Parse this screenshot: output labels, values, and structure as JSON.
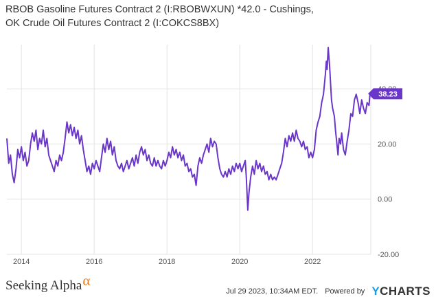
{
  "chart_data": {
    "type": "line",
    "title_line1": "RBOB Gasoline Futures Contract 2 (I:RBOBWXUN) *42.0 - Cushings,",
    "title_line2": "OK Crude Oil Futures Contract 2 (I:COKCS8BX)",
    "xlim": [
      2013.6,
      2023.6
    ],
    "ylim": [
      -20,
      56
    ],
    "y_ticks": [
      {
        "value": 40,
        "label": "40.00"
      },
      {
        "value": 20,
        "label": "20.00"
      },
      {
        "value": 0,
        "label": "0.00"
      },
      {
        "value": -20,
        "label": "-20.00"
      }
    ],
    "x_ticks": [
      {
        "value": 2014,
        "label": "2014"
      },
      {
        "value": 2016,
        "label": "2016"
      },
      {
        "value": 2018,
        "label": "2018"
      },
      {
        "value": 2020,
        "label": "2020"
      },
      {
        "value": 2022,
        "label": "2022"
      }
    ],
    "grid": true,
    "last_value_label": "38.23",
    "series": [
      {
        "color": "#6a35c9",
        "points": [
          [
            2013.6,
            22
          ],
          [
            2013.65,
            13
          ],
          [
            2013.7,
            16
          ],
          [
            2013.75,
            9
          ],
          [
            2013.8,
            6
          ],
          [
            2013.85,
            11
          ],
          [
            2013.9,
            18
          ],
          [
            2013.95,
            15
          ],
          [
            2014.0,
            19
          ],
          [
            2014.05,
            14
          ],
          [
            2014.1,
            17
          ],
          [
            2014.15,
            12
          ],
          [
            2014.2,
            14
          ],
          [
            2014.25,
            20
          ],
          [
            2014.3,
            24
          ],
          [
            2014.35,
            21
          ],
          [
            2014.4,
            25
          ],
          [
            2014.45,
            18
          ],
          [
            2014.5,
            22
          ],
          [
            2014.55,
            20
          ],
          [
            2014.6,
            25
          ],
          [
            2014.65,
            19
          ],
          [
            2014.7,
            22
          ],
          [
            2014.75,
            16
          ],
          [
            2014.8,
            14
          ],
          [
            2014.85,
            12
          ],
          [
            2014.9,
            10
          ],
          [
            2014.95,
            14
          ],
          [
            2015.0,
            12
          ],
          [
            2015.05,
            16
          ],
          [
            2015.1,
            14
          ],
          [
            2015.15,
            17
          ],
          [
            2015.2,
            22
          ],
          [
            2015.25,
            28
          ],
          [
            2015.3,
            24
          ],
          [
            2015.35,
            27
          ],
          [
            2015.4,
            23
          ],
          [
            2015.45,
            26
          ],
          [
            2015.5,
            22
          ],
          [
            2015.55,
            25
          ],
          [
            2015.6,
            20
          ],
          [
            2015.65,
            23
          ],
          [
            2015.7,
            18
          ],
          [
            2015.75,
            14
          ],
          [
            2015.8,
            10
          ],
          [
            2015.85,
            12
          ],
          [
            2015.9,
            9
          ],
          [
            2015.95,
            13
          ],
          [
            2016.0,
            11
          ],
          [
            2016.05,
            14
          ],
          [
            2016.1,
            12
          ],
          [
            2016.15,
            10
          ],
          [
            2016.2,
            15
          ],
          [
            2016.25,
            20
          ],
          [
            2016.3,
            17
          ],
          [
            2016.35,
            22
          ],
          [
            2016.4,
            18
          ],
          [
            2016.45,
            21
          ],
          [
            2016.5,
            16
          ],
          [
            2016.55,
            19
          ],
          [
            2016.6,
            14
          ],
          [
            2016.65,
            12
          ],
          [
            2016.7,
            11
          ],
          [
            2016.75,
            13
          ],
          [
            2016.8,
            10
          ],
          [
            2016.85,
            12
          ],
          [
            2016.9,
            14
          ],
          [
            2016.95,
            11
          ],
          [
            2017.0,
            13
          ],
          [
            2017.05,
            15
          ],
          [
            2017.1,
            12
          ],
          [
            2017.15,
            16
          ],
          [
            2017.2,
            13
          ],
          [
            2017.25,
            17
          ],
          [
            2017.3,
            19
          ],
          [
            2017.35,
            16
          ],
          [
            2017.4,
            18
          ],
          [
            2017.45,
            14
          ],
          [
            2017.5,
            16
          ],
          [
            2017.55,
            13
          ],
          [
            2017.6,
            12
          ],
          [
            2017.65,
            15
          ],
          [
            2017.7,
            12
          ],
          [
            2017.75,
            14
          ],
          [
            2017.8,
            12
          ],
          [
            2017.85,
            11
          ],
          [
            2017.9,
            14
          ],
          [
            2017.95,
            12
          ],
          [
            2018.0,
            14
          ],
          [
            2018.05,
            17
          ],
          [
            2018.1,
            15
          ],
          [
            2018.15,
            19
          ],
          [
            2018.2,
            16
          ],
          [
            2018.25,
            18
          ],
          [
            2018.3,
            15
          ],
          [
            2018.35,
            17
          ],
          [
            2018.4,
            14
          ],
          [
            2018.45,
            16
          ],
          [
            2018.5,
            12
          ],
          [
            2018.55,
            13
          ],
          [
            2018.6,
            10
          ],
          [
            2018.65,
            11
          ],
          [
            2018.7,
            8
          ],
          [
            2018.75,
            9
          ],
          [
            2018.8,
            5
          ],
          [
            2018.85,
            12
          ],
          [
            2018.9,
            15
          ],
          [
            2018.95,
            13
          ],
          [
            2019.0,
            16
          ],
          [
            2019.05,
            18
          ],
          [
            2019.1,
            20
          ],
          [
            2019.15,
            17
          ],
          [
            2019.2,
            22
          ],
          [
            2019.25,
            19
          ],
          [
            2019.3,
            21
          ],
          [
            2019.35,
            20
          ],
          [
            2019.4,
            15
          ],
          [
            2019.45,
            11
          ],
          [
            2019.5,
            9
          ],
          [
            2019.55,
            8
          ],
          [
            2019.6,
            10
          ],
          [
            2019.65,
            8
          ],
          [
            2019.7,
            11
          ],
          [
            2019.75,
            9
          ],
          [
            2019.8,
            12
          ],
          [
            2019.85,
            10
          ],
          [
            2019.9,
            13
          ],
          [
            2019.95,
            11
          ],
          [
            2020.0,
            13
          ],
          [
            2020.05,
            10
          ],
          [
            2020.1,
            12
          ],
          [
            2020.15,
            14
          ],
          [
            2020.18,
            8
          ],
          [
            2020.22,
            -4
          ],
          [
            2020.25,
            2
          ],
          [
            2020.3,
            8
          ],
          [
            2020.35,
            12
          ],
          [
            2020.4,
            9
          ],
          [
            2020.45,
            14
          ],
          [
            2020.5,
            11
          ],
          [
            2020.55,
            13
          ],
          [
            2020.6,
            10
          ],
          [
            2020.65,
            12
          ],
          [
            2020.7,
            9
          ],
          [
            2020.75,
            10
          ],
          [
            2020.8,
            7
          ],
          [
            2020.85,
            9
          ],
          [
            2020.9,
            7
          ],
          [
            2020.95,
            8
          ],
          [
            2021.0,
            7
          ],
          [
            2021.05,
            9
          ],
          [
            2021.1,
            11
          ],
          [
            2021.15,
            13
          ],
          [
            2021.2,
            17
          ],
          [
            2021.25,
            22
          ],
          [
            2021.3,
            19
          ],
          [
            2021.35,
            23
          ],
          [
            2021.4,
            21
          ],
          [
            2021.45,
            24
          ],
          [
            2021.5,
            21
          ],
          [
            2021.55,
            25
          ],
          [
            2021.6,
            22
          ],
          [
            2021.65,
            21
          ],
          [
            2021.7,
            19
          ],
          [
            2021.75,
            21
          ],
          [
            2021.8,
            18
          ],
          [
            2021.85,
            19
          ],
          [
            2021.9,
            15
          ],
          [
            2021.95,
            17
          ],
          [
            2022.0,
            15
          ],
          [
            2022.05,
            18
          ],
          [
            2022.1,
            25
          ],
          [
            2022.15,
            28
          ],
          [
            2022.2,
            30
          ],
          [
            2022.25,
            35
          ],
          [
            2022.3,
            38
          ],
          [
            2022.35,
            45
          ],
          [
            2022.38,
            50
          ],
          [
            2022.4,
            47
          ],
          [
            2022.43,
            55
          ],
          [
            2022.47,
            48
          ],
          [
            2022.52,
            36
          ],
          [
            2022.55,
            33
          ],
          [
            2022.6,
            30
          ],
          [
            2022.63,
            25
          ],
          [
            2022.67,
            20
          ],
          [
            2022.7,
            16
          ],
          [
            2022.73,
            22
          ],
          [
            2022.77,
            20
          ],
          [
            2022.8,
            24
          ],
          [
            2022.85,
            18
          ],
          [
            2022.9,
            16
          ],
          [
            2022.95,
            21
          ],
          [
            2023.0,
            25
          ],
          [
            2023.05,
            31
          ],
          [
            2023.1,
            30
          ],
          [
            2023.15,
            36
          ],
          [
            2023.2,
            38
          ],
          [
            2023.25,
            35
          ],
          [
            2023.3,
            31
          ],
          [
            2023.35,
            36
          ],
          [
            2023.4,
            33
          ],
          [
            2023.45,
            31
          ],
          [
            2023.5,
            35
          ],
          [
            2023.55,
            34
          ],
          [
            2023.58,
            38.23
          ]
        ]
      }
    ]
  },
  "footer": {
    "brand_left": "Seeking Alpha",
    "brand_left_mark": "α",
    "timestamp": "Jul 29 2023, 10:34AM EDT.",
    "powered_by": "Powered by",
    "brand_right_y": "Y",
    "brand_right_rest": "CHARTS"
  }
}
